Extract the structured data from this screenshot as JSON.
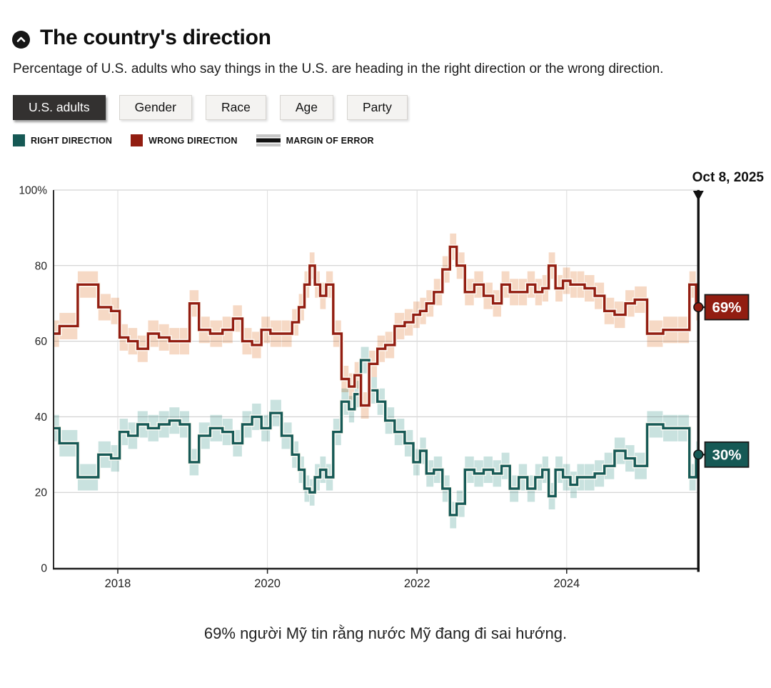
{
  "header": {
    "title": "The country's direction",
    "icon": "chevron-up-icon"
  },
  "subtitle": "Percentage of U.S. adults who say things in the U.S. are heading in the right direction or the wrong direction.",
  "tabs": {
    "items": [
      {
        "label": "U.S. adults",
        "active": true
      },
      {
        "label": "Gender",
        "active": false
      },
      {
        "label": "Race",
        "active": false
      },
      {
        "label": "Age",
        "active": false
      },
      {
        "label": "Party",
        "active": false
      }
    ]
  },
  "legend": {
    "items": [
      {
        "label": "RIGHT DIRECTION",
        "color": "#165955"
      },
      {
        "label": "WRONG DIRECTION",
        "color": "#921d11"
      },
      {
        "label": "MARGIN OF ERROR",
        "color": "#bdbdbd"
      }
    ]
  },
  "chart_data": {
    "type": "line",
    "subtype": "step",
    "title": "The country's direction",
    "ylim": [
      0,
      100
    ],
    "xlim": [
      2017.1,
      2025.78
    ],
    "grid": true,
    "margin_of_error": 3.5,
    "y_ticks": {
      "values": [
        100,
        80,
        60,
        40,
        20,
        0
      ],
      "labels": [
        "100%",
        "80",
        "60",
        "40",
        "20",
        "0"
      ]
    },
    "x_ticks": {
      "values": [
        2018,
        2020,
        2022,
        2024
      ],
      "labels": [
        "2018",
        "2020",
        "2022",
        "2024"
      ]
    },
    "x": [
      2017.13,
      2017.3,
      2017.63,
      2017.85,
      2017.97,
      2018.08,
      2018.2,
      2018.33,
      2018.48,
      2018.62,
      2018.76,
      2018.9,
      2019.02,
      2019.15,
      2019.32,
      2019.48,
      2019.6,
      2019.73,
      2019.86,
      2019.98,
      2020.1,
      2020.28,
      2020.38,
      2020.46,
      2020.53,
      2020.6,
      2020.67,
      2020.74,
      2020.83,
      2020.93,
      2021.05,
      2021.13,
      2021.2,
      2021.3,
      2021.42,
      2021.52,
      2021.63,
      2021.77,
      2021.9,
      2022.0,
      2022.08,
      2022.17,
      2022.28,
      2022.4,
      2022.48,
      2022.58,
      2022.7,
      2022.83,
      2022.95,
      2023.08,
      2023.18,
      2023.3,
      2023.42,
      2023.53,
      2023.63,
      2023.72,
      2023.8,
      2023.9,
      2024.0,
      2024.1,
      2024.18,
      2024.3,
      2024.45,
      2024.56,
      2024.72,
      2024.85,
      2024.97,
      2025.18,
      2025.4,
      2025.58,
      2025.7,
      2025.76
    ],
    "series": [
      {
        "name": "Right direction",
        "color": "#165955",
        "band_color": "#c9e2df",
        "values": [
          37,
          33,
          24,
          30,
          29,
          36,
          35,
          38,
          37,
          38,
          39,
          38,
          28,
          35,
          37,
          36,
          33,
          38,
          40,
          37,
          41,
          35,
          30,
          26,
          21,
          20,
          24,
          26,
          24,
          36,
          44,
          42,
          46,
          55,
          47,
          44,
          39,
          36,
          33,
          28,
          31,
          25,
          26,
          21,
          14,
          17,
          26,
          25,
          26,
          25,
          27,
          21,
          24,
          21,
          24,
          26,
          19,
          26,
          24,
          22,
          24,
          24,
          25,
          27,
          31,
          29,
          27,
          38,
          37,
          37,
          24,
          30
        ]
      },
      {
        "name": "Wrong direction",
        "color": "#921d11",
        "band_color": "#f6d9c5",
        "values": [
          62,
          64,
          75,
          69,
          68,
          61,
          60,
          58,
          62,
          61,
          60,
          60,
          70,
          63,
          62,
          63,
          66,
          60,
          59,
          63,
          62,
          62,
          65,
          69,
          75,
          80,
          75,
          72,
          75,
          62,
          50,
          48,
          51,
          43,
          54,
          58,
          59,
          64,
          65,
          67,
          68,
          70,
          73,
          79,
          85,
          80,
          73,
          75,
          72,
          70,
          75,
          73,
          73,
          75,
          73,
          74,
          80,
          74,
          76,
          75,
          75,
          74,
          72,
          68,
          67,
          70,
          71,
          62,
          63,
          63,
          75,
          69
        ]
      }
    ],
    "marker": {
      "date_label": "Oct 8, 2025",
      "x": 2025.76,
      "wrong_value": 69,
      "wrong_label": "69%",
      "right_value": 30,
      "right_label": "30%"
    }
  },
  "caption": "69% người Mỹ tin rằng nước Mỹ đang đi sai hướng."
}
